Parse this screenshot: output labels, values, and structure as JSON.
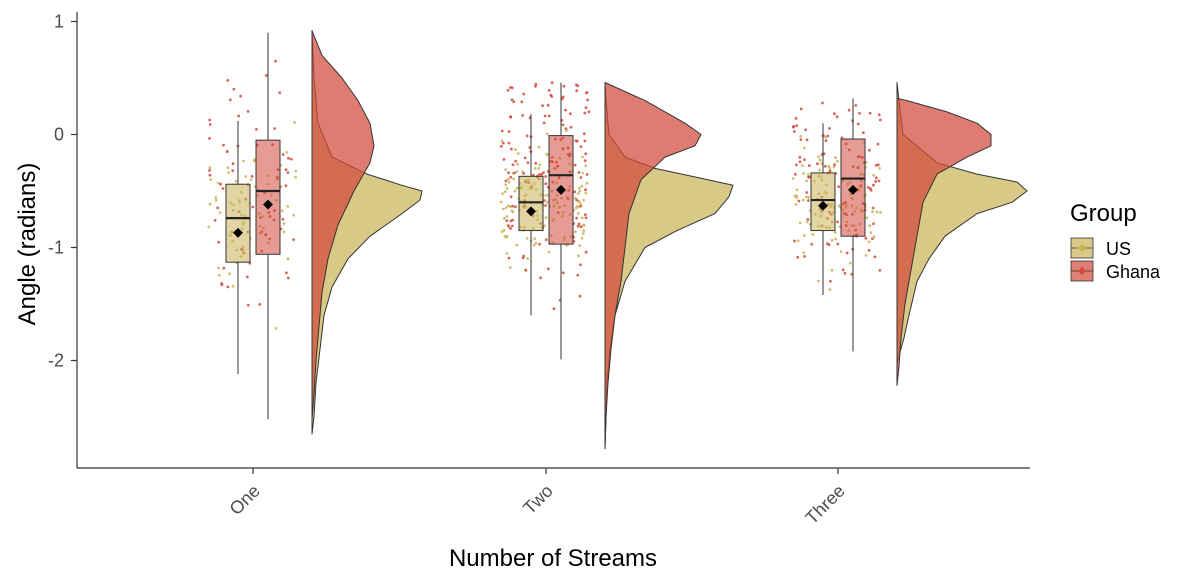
{
  "chart_data": {
    "type": "raincloud",
    "xlabel": "Number of Streams",
    "ylabel": "Angle (radians)",
    "categories": [
      "One",
      "Two",
      "Three"
    ],
    "yticks": [
      1,
      0,
      -1,
      -2
    ],
    "yticklabels": [
      "1",
      "0",
      "-1",
      "-2"
    ],
    "ylim": [
      -2.95,
      1.1
    ],
    "grid": false,
    "legend": {
      "title": "Group",
      "position": "right",
      "entries": [
        {
          "label": "US",
          "color": "#c9b458"
        },
        {
          "label": "Ghana",
          "color": "#d24a3c"
        }
      ]
    },
    "colors": {
      "US": "#c9b458",
      "Ghana": "#d24a3c"
    },
    "series": [
      {
        "name": "US",
        "boxes": [
          {
            "q1": -1.13,
            "median": -0.74,
            "q3": -0.44,
            "whisker_low": -2.12,
            "whisker_high": 0.12,
            "mean": -0.87
          },
          {
            "q1": -0.85,
            "median": -0.6,
            "q3": -0.37,
            "whisker_low": -1.6,
            "whisker_high": 0.18,
            "mean": -0.68
          },
          {
            "q1": -0.85,
            "median": -0.58,
            "q3": -0.34,
            "whisker_low": -1.42,
            "whisker_high": 0.1,
            "mean": -0.63
          }
        ],
        "density_ranges": [
          [
            -2.65,
            0.92
          ],
          [
            -2.78,
            0.46
          ],
          [
            -2.02,
            0.46
          ]
        ],
        "density_mode": [
          -0.5,
          -0.45,
          -0.47
        ]
      },
      {
        "name": "Ghana",
        "boxes": [
          {
            "q1": -1.06,
            "median": -0.5,
            "q3": -0.05,
            "whisker_low": -2.52,
            "whisker_high": 0.9,
            "mean": -0.62
          },
          {
            "q1": -0.97,
            "median": -0.36,
            "q3": -0.01,
            "whisker_low": -1.99,
            "whisker_high": 0.46,
            "mean": -0.49
          },
          {
            "q1": -0.9,
            "median": -0.39,
            "q3": -0.04,
            "whisker_low": -1.92,
            "whisker_high": 0.32,
            "mean": -0.49
          }
        ],
        "density_ranges": [
          [
            -2.52,
            0.92
          ],
          [
            -2.78,
            0.46
          ],
          [
            -2.22,
            0.32
          ]
        ],
        "density_mode": [
          -0.05,
          -0.05,
          0.0
        ]
      }
    ]
  }
}
